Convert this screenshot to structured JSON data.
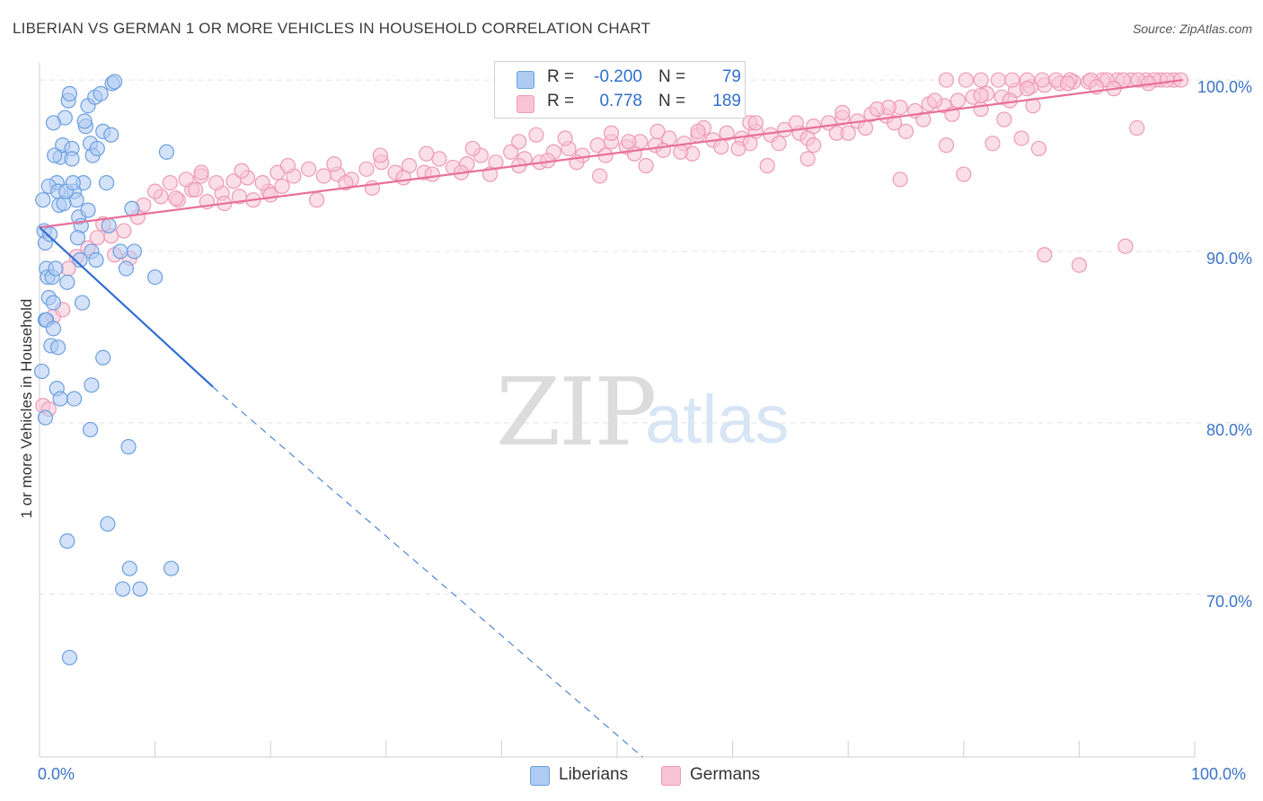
{
  "title": "LIBERIAN VS GERMAN 1 OR MORE VEHICLES IN HOUSEHOLD CORRELATION CHART",
  "source": "Source: ZipAtlas.com",
  "watermark": {
    "zip": "ZIP",
    "atlas": "atlas"
  },
  "legend": {
    "rows": [
      {
        "r_label": "R =",
        "r_value": "-0.200",
        "n_label": "N =",
        "n_value": "79"
      },
      {
        "r_label": "R =",
        "r_value": "0.778",
        "n_label": "N =",
        "n_value": "189"
      }
    ]
  },
  "bottom_legend": [
    "Liberians",
    "Germans"
  ],
  "colors": {
    "liberians_fill": "#aecbf2",
    "liberians_stroke": "#6b9fe0",
    "liberians_line": "#2f6fd0",
    "germans_fill": "#f8c4d5",
    "germans_stroke": "#ee99b6",
    "germans_line": "#e8709a",
    "grid": "#e3e3e3",
    "tick_text": "#3b74c8"
  },
  "chart_data": {
    "type": "scatter",
    "title": "LIBERIAN VS GERMAN 1 OR MORE VEHICLES IN HOUSEHOLD CORRELATION CHART",
    "xlabel": "",
    "ylabel": "1 or more Vehicles in Household",
    "xlim": [
      0,
      100
    ],
    "ylim": [
      60.5,
      101
    ],
    "x_tick_labels": [
      "0.0%",
      "100.0%"
    ],
    "y_ticks": [
      {
        "value": 100,
        "label": "100.0%"
      },
      {
        "value": 90,
        "label": "90.0%"
      },
      {
        "value": 80,
        "label": "80.0%"
      },
      {
        "value": 70,
        "label": "70.0%"
      }
    ],
    "grid": true,
    "legend_position": "top-center",
    "series": [
      {
        "name": "Liberians",
        "r": -0.2,
        "n": 79,
        "trend": {
          "x_start": 0,
          "y_start": 91.4,
          "x_solid_end": 15,
          "y_solid_end": 82.1,
          "x_dash_end": 52.2,
          "y_dash_end": 60.5
        },
        "points": [
          [
            0.3,
            93.0
          ],
          [
            0.4,
            91.2
          ],
          [
            0.5,
            90.5
          ],
          [
            0.6,
            89.0
          ],
          [
            0.7,
            88.5
          ],
          [
            0.8,
            87.3
          ],
          [
            0.5,
            86.0
          ],
          [
            1.0,
            84.5
          ],
          [
            1.1,
            88.5
          ],
          [
            1.2,
            87.0
          ],
          [
            1.5,
            94.0
          ],
          [
            1.7,
            92.7
          ],
          [
            1.8,
            95.5
          ],
          [
            2.0,
            96.2
          ],
          [
            2.2,
            97.8
          ],
          [
            2.5,
            98.8
          ],
          [
            2.6,
            99.2
          ],
          [
            2.8,
            96.0
          ],
          [
            3.0,
            93.5
          ],
          [
            3.2,
            93.0
          ],
          [
            3.4,
            92.0
          ],
          [
            3.6,
            91.5
          ],
          [
            3.8,
            94.0
          ],
          [
            4.0,
            97.3
          ],
          [
            4.2,
            98.5
          ],
          [
            4.4,
            96.3
          ],
          [
            4.6,
            95.6
          ],
          [
            4.8,
            99.0
          ],
          [
            5.0,
            96.0
          ],
          [
            5.3,
            99.2
          ],
          [
            5.5,
            97.0
          ],
          [
            5.8,
            94.0
          ],
          [
            6.0,
            91.5
          ],
          [
            6.3,
            99.8
          ],
          [
            6.5,
            99.9
          ],
          [
            7.0,
            90.0
          ],
          [
            7.5,
            89.0
          ],
          [
            8.0,
            92.5
          ],
          [
            8.2,
            90.0
          ],
          [
            10.0,
            88.5
          ],
          [
            11.0,
            95.8
          ],
          [
            0.8,
            93.8
          ],
          [
            1.3,
            95.6
          ],
          [
            1.6,
            93.5
          ],
          [
            2.1,
            92.8
          ],
          [
            2.3,
            93.5
          ],
          [
            2.9,
            94.0
          ],
          [
            3.3,
            90.8
          ],
          [
            3.5,
            89.5
          ],
          [
            4.5,
            90.0
          ],
          [
            4.9,
            89.5
          ],
          [
            0.9,
            91.0
          ],
          [
            1.4,
            89.0
          ],
          [
            2.4,
            88.2
          ],
          [
            3.7,
            87.0
          ],
          [
            0.6,
            86.0
          ],
          [
            1.2,
            85.5
          ],
          [
            1.6,
            84.4
          ],
          [
            5.5,
            83.8
          ],
          [
            0.2,
            83.0
          ],
          [
            1.5,
            82.0
          ],
          [
            4.5,
            82.2
          ],
          [
            1.8,
            81.4
          ],
          [
            3.0,
            81.4
          ],
          [
            0.5,
            80.3
          ],
          [
            4.4,
            79.6
          ],
          [
            7.7,
            78.6
          ],
          [
            5.9,
            74.1
          ],
          [
            2.4,
            73.1
          ],
          [
            7.8,
            71.5
          ],
          [
            11.4,
            71.5
          ],
          [
            7.2,
            70.3
          ],
          [
            8.7,
            70.3
          ],
          [
            2.6,
            66.3
          ],
          [
            1.2,
            97.5
          ],
          [
            3.9,
            97.6
          ],
          [
            6.2,
            96.8
          ],
          [
            2.8,
            95.4
          ],
          [
            4.2,
            92.4
          ]
        ]
      },
      {
        "name": "Germans",
        "r": 0.778,
        "n": 189,
        "trend": {
          "x_start": 0,
          "y_start": 91.4,
          "x_end": 99,
          "y_end": 100.0
        },
        "points": [
          [
            0.3,
            81.0
          ],
          [
            0.8,
            80.8
          ],
          [
            1.2,
            86.2
          ],
          [
            2.0,
            86.6
          ],
          [
            2.5,
            89.0
          ],
          [
            3.2,
            89.7
          ],
          [
            4.2,
            90.2
          ],
          [
            5.0,
            90.8
          ],
          [
            6.2,
            90.9
          ],
          [
            7.3,
            91.2
          ],
          [
            6.5,
            89.8
          ],
          [
            7.8,
            89.6
          ],
          [
            5.5,
            91.6
          ],
          [
            9.0,
            92.7
          ],
          [
            10.5,
            93.2
          ],
          [
            12.0,
            93.0
          ],
          [
            13.2,
            93.6
          ],
          [
            14.5,
            92.9
          ],
          [
            15.8,
            93.4
          ],
          [
            17.3,
            93.2
          ],
          [
            18.5,
            93.0
          ],
          [
            19.8,
            93.5
          ],
          [
            21.0,
            93.8
          ],
          [
            10.0,
            93.5
          ],
          [
            11.3,
            94.0
          ],
          [
            12.7,
            94.2
          ],
          [
            14.0,
            94.4
          ],
          [
            15.3,
            94.0
          ],
          [
            16.8,
            94.1
          ],
          [
            18.0,
            94.3
          ],
          [
            19.3,
            94.0
          ],
          [
            20.6,
            94.6
          ],
          [
            22.0,
            94.4
          ],
          [
            23.3,
            94.8
          ],
          [
            24.6,
            94.4
          ],
          [
            25.8,
            94.5
          ],
          [
            27.0,
            94.2
          ],
          [
            28.3,
            94.8
          ],
          [
            29.6,
            95.2
          ],
          [
            30.8,
            94.6
          ],
          [
            32.0,
            95.0
          ],
          [
            33.3,
            94.6
          ],
          [
            34.6,
            95.4
          ],
          [
            35.8,
            94.9
          ],
          [
            37.0,
            95.1
          ],
          [
            38.2,
            95.6
          ],
          [
            39.5,
            95.2
          ],
          [
            40.8,
            95.8
          ],
          [
            42.0,
            95.4
          ],
          [
            43.3,
            95.2
          ],
          [
            44.5,
            95.8
          ],
          [
            45.8,
            96.0
          ],
          [
            47.0,
            95.6
          ],
          [
            48.3,
            96.2
          ],
          [
            49.5,
            96.4
          ],
          [
            50.8,
            96.1
          ],
          [
            52.0,
            96.4
          ],
          [
            53.3,
            96.2
          ],
          [
            54.5,
            96.6
          ],
          [
            55.8,
            96.3
          ],
          [
            57.0,
            96.8
          ],
          [
            58.3,
            96.5
          ],
          [
            59.5,
            96.9
          ],
          [
            60.8,
            96.6
          ],
          [
            62.0,
            97.0
          ],
          [
            63.3,
            96.8
          ],
          [
            64.5,
            97.1
          ],
          [
            65.8,
            96.9
          ],
          [
            67.0,
            97.3
          ],
          [
            68.3,
            97.5
          ],
          [
            69.5,
            97.8
          ],
          [
            70.8,
            97.6
          ],
          [
            72.0,
            98.0
          ],
          [
            73.3,
            97.9
          ],
          [
            74.5,
            98.4
          ],
          [
            75.8,
            98.2
          ],
          [
            77.0,
            98.6
          ],
          [
            78.3,
            98.5
          ],
          [
            79.5,
            98.8
          ],
          [
            80.8,
            99.0
          ],
          [
            82.0,
            99.2
          ],
          [
            83.3,
            99.0
          ],
          [
            84.5,
            99.4
          ],
          [
            85.8,
            99.6
          ],
          [
            87.0,
            99.7
          ],
          [
            88.3,
            99.8
          ],
          [
            89.5,
            99.9
          ],
          [
            90.8,
            99.9
          ],
          [
            92.0,
            100.0
          ],
          [
            93.3,
            100.0
          ],
          [
            94.5,
            100.0
          ],
          [
            95.8,
            100.0
          ],
          [
            97.0,
            100.0
          ],
          [
            98.2,
            100.0
          ],
          [
            78.5,
            100.0
          ],
          [
            80.2,
            100.0
          ],
          [
            81.5,
            100.0
          ],
          [
            83.0,
            100.0
          ],
          [
            84.2,
            100.0
          ],
          [
            85.5,
            100.0
          ],
          [
            86.8,
            100.0
          ],
          [
            88.0,
            100.0
          ],
          [
            89.2,
            100.0
          ],
          [
            91.0,
            100.0
          ],
          [
            92.4,
            100.0
          ],
          [
            93.8,
            100.0
          ],
          [
            95.1,
            100.0
          ],
          [
            96.5,
            100.0
          ],
          [
            97.6,
            100.0
          ],
          [
            98.8,
            100.0
          ],
          [
            8.5,
            92.0
          ],
          [
            11.8,
            93.1
          ],
          [
            13.5,
            93.6
          ],
          [
            16.0,
            92.8
          ],
          [
            20.0,
            93.3
          ],
          [
            24.0,
            93.0
          ],
          [
            26.5,
            94.0
          ],
          [
            28.8,
            93.7
          ],
          [
            31.5,
            94.3
          ],
          [
            34.0,
            94.5
          ],
          [
            36.5,
            94.6
          ],
          [
            39.0,
            94.5
          ],
          [
            41.5,
            95.0
          ],
          [
            44.0,
            95.3
          ],
          [
            46.5,
            95.2
          ],
          [
            49.0,
            95.6
          ],
          [
            51.5,
            95.7
          ],
          [
            54.0,
            95.9
          ],
          [
            56.5,
            95.7
          ],
          [
            59.0,
            96.1
          ],
          [
            61.5,
            96.3
          ],
          [
            64.0,
            96.3
          ],
          [
            66.5,
            96.6
          ],
          [
            69.0,
            96.9
          ],
          [
            71.5,
            97.2
          ],
          [
            74.0,
            97.5
          ],
          [
            76.5,
            97.7
          ],
          [
            79.0,
            98.0
          ],
          [
            81.5,
            98.3
          ],
          [
            84.0,
            98.8
          ],
          [
            86.0,
            98.5
          ],
          [
            14.0,
            94.6
          ],
          [
            17.5,
            94.7
          ],
          [
            21.5,
            95.0
          ],
          [
            25.5,
            95.1
          ],
          [
            29.5,
            95.6
          ],
          [
            33.5,
            95.7
          ],
          [
            37.5,
            96.0
          ],
          [
            41.5,
            96.4
          ],
          [
            45.5,
            96.6
          ],
          [
            49.5,
            96.9
          ],
          [
            53.5,
            97.0
          ],
          [
            57.5,
            97.2
          ],
          [
            61.5,
            97.5
          ],
          [
            65.5,
            97.5
          ],
          [
            69.5,
            98.1
          ],
          [
            73.5,
            98.4
          ],
          [
            77.5,
            98.8
          ],
          [
            81.5,
            99.1
          ],
          [
            85.5,
            99.5
          ],
          [
            48.5,
            94.4
          ],
          [
            52.5,
            95.0
          ],
          [
            55.5,
            95.8
          ],
          [
            63.0,
            95.0
          ],
          [
            66.5,
            95.4
          ],
          [
            70.0,
            96.9
          ],
          [
            74.5,
            94.2
          ],
          [
            78.5,
            96.2
          ],
          [
            80.0,
            94.5
          ],
          [
            82.5,
            96.3
          ],
          [
            85.0,
            96.6
          ],
          [
            86.5,
            96.0
          ],
          [
            95.0,
            97.2
          ],
          [
            87.0,
            89.8
          ],
          [
            90.0,
            89.2
          ],
          [
            94.0,
            90.3
          ],
          [
            62.0,
            97.5
          ],
          [
            60.5,
            96.0
          ],
          [
            43.0,
            96.8
          ],
          [
            51.0,
            96.4
          ],
          [
            57.0,
            97.0
          ],
          [
            67.0,
            96.2
          ],
          [
            72.5,
            98.3
          ],
          [
            75.0,
            97.0
          ],
          [
            83.5,
            97.7
          ],
          [
            89.0,
            99.8
          ],
          [
            91.5,
            99.6
          ],
          [
            93.0,
            99.5
          ],
          [
            96.0,
            99.8
          ]
        ]
      }
    ]
  }
}
